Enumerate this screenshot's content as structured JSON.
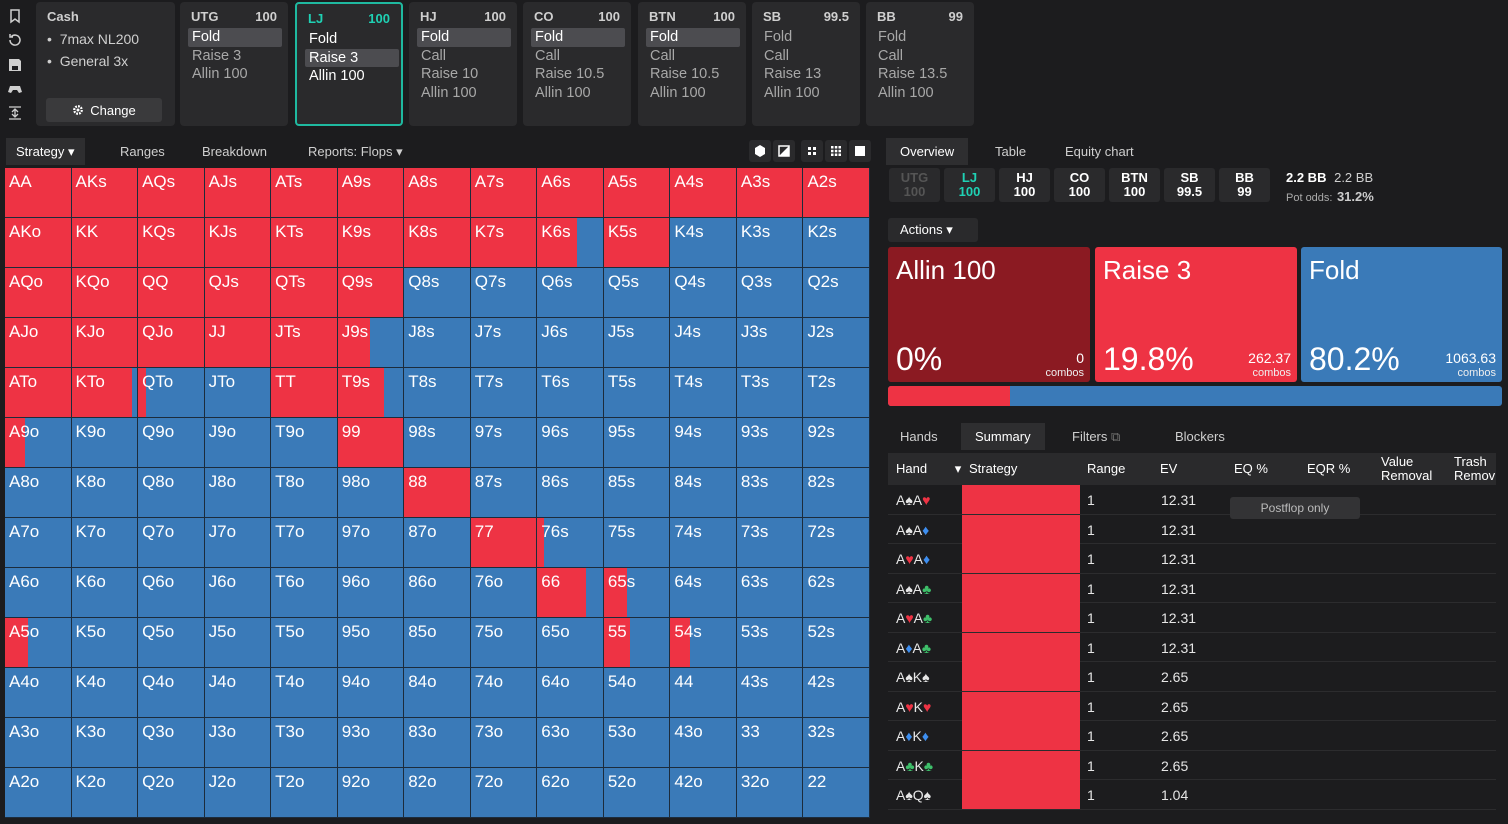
{
  "rail_icons": [
    "bookmark-icon",
    "history-icon",
    "save-icon",
    "gamepad-icon",
    "text-height-icon"
  ],
  "game": {
    "title": "Cash",
    "items": [
      "7max NL200",
      "General 3x"
    ],
    "change_label": "Change"
  },
  "positions": [
    {
      "name": "UTG",
      "stack": "100",
      "options": [
        "Fold",
        "Raise 3",
        "Allin 100"
      ],
      "selected": 0
    },
    {
      "name": "LJ",
      "stack": "100",
      "options": [
        "Fold",
        "Raise 3",
        "Allin 100"
      ],
      "selected": 1,
      "active": true
    },
    {
      "name": "HJ",
      "stack": "100",
      "options": [
        "Fold",
        "Call",
        "Raise 10",
        "Allin 100"
      ],
      "selected": 0
    },
    {
      "name": "CO",
      "stack": "100",
      "options": [
        "Fold",
        "Call",
        "Raise 10.5",
        "Allin 100"
      ],
      "selected": 0
    },
    {
      "name": "BTN",
      "stack": "100",
      "options": [
        "Fold",
        "Call",
        "Raise 10.5",
        "Allin 100"
      ],
      "selected": 0
    },
    {
      "name": "SB",
      "stack": "99.5",
      "options": [
        "Fold",
        "Call",
        "Raise 13",
        "Allin 100"
      ],
      "selected": -1
    },
    {
      "name": "BB",
      "stack": "99",
      "options": [
        "Fold",
        "Call",
        "Raise 13.5",
        "Allin 100"
      ],
      "selected": -1
    }
  ],
  "left_tabs": {
    "strategy": "Strategy",
    "ranges": "Ranges",
    "breakdown": "Breakdown",
    "reports": "Reports: Flops"
  },
  "colors": {
    "raise": "#ee3344",
    "fold": "#3a7ab8",
    "allin": "#8b1a22",
    "accent": "#1fd1b4"
  },
  "grid": {
    "ranks": [
      "A",
      "K",
      "Q",
      "J",
      "T",
      "9",
      "8",
      "7",
      "6",
      "5",
      "4",
      "3",
      "2"
    ],
    "labels": [
      [
        "AA",
        "AKs",
        "AQs",
        "AJs",
        "ATs",
        "A9s",
        "A8s",
        "A7s",
        "A6s",
        "A5s",
        "A4s",
        "A3s",
        "A2s"
      ],
      [
        "AKo",
        "KK",
        "KQs",
        "KJs",
        "KTs",
        "K9s",
        "K8s",
        "K7s",
        "K6s",
        "K5s",
        "K4s",
        "K3s",
        "K2s"
      ],
      [
        "AQo",
        "KQo",
        "QQ",
        "QJs",
        "QTs",
        "Q9s",
        "Q8s",
        "Q7s",
        "Q6s",
        "Q5s",
        "Q4s",
        "Q3s",
        "Q2s"
      ],
      [
        "AJo",
        "KJo",
        "QJo",
        "JJ",
        "JTs",
        "J9s",
        "J8s",
        "J7s",
        "J6s",
        "J5s",
        "J4s",
        "J3s",
        "J2s"
      ],
      [
        "ATo",
        "KTo",
        "QTo",
        "JTo",
        "TT",
        "T9s",
        "T8s",
        "T7s",
        "T6s",
        "T5s",
        "T4s",
        "T3s",
        "T2s"
      ],
      [
        "A9o",
        "K9o",
        "Q9o",
        "J9o",
        "T9o",
        "99",
        "98s",
        "97s",
        "96s",
        "95s",
        "94s",
        "93s",
        "92s"
      ],
      [
        "A8o",
        "K8o",
        "Q8o",
        "J8o",
        "T8o",
        "98o",
        "88",
        "87s",
        "86s",
        "85s",
        "84s",
        "83s",
        "82s"
      ],
      [
        "A7o",
        "K7o",
        "Q7o",
        "J7o",
        "T7o",
        "97o",
        "87o",
        "77",
        "76s",
        "75s",
        "74s",
        "73s",
        "72s"
      ],
      [
        "A6o",
        "K6o",
        "Q6o",
        "J6o",
        "T6o",
        "96o",
        "86o",
        "76o",
        "66",
        "65s",
        "64s",
        "63s",
        "62s"
      ],
      [
        "A5o",
        "K5o",
        "Q5o",
        "J5o",
        "T5o",
        "95o",
        "85o",
        "75o",
        "65o",
        "55",
        "54s",
        "53s",
        "52s"
      ],
      [
        "A4o",
        "K4o",
        "Q4o",
        "J4o",
        "T4o",
        "94o",
        "84o",
        "74o",
        "64o",
        "54o",
        "44",
        "43s",
        "42s"
      ],
      [
        "A3o",
        "K3o",
        "Q3o",
        "J3o",
        "T3o",
        "93o",
        "83o",
        "73o",
        "63o",
        "53o",
        "43o",
        "33",
        "32s"
      ],
      [
        "A2o",
        "K2o",
        "Q2o",
        "J2o",
        "T2o",
        "92o",
        "82o",
        "72o",
        "62o",
        "52o",
        "42o",
        "32o",
        "22"
      ]
    ],
    "raise_freq": [
      [
        1,
        1,
        1,
        1,
        1,
        1,
        1,
        1,
        1,
        1,
        1,
        1,
        1
      ],
      [
        1,
        1,
        1,
        1,
        1,
        1,
        1,
        1,
        0.6,
        1,
        0,
        0,
        0
      ],
      [
        1,
        1,
        1,
        1,
        1,
        1,
        0,
        0,
        0,
        0,
        0,
        0,
        0
      ],
      [
        1,
        1,
        1,
        1,
        1,
        0.5,
        0,
        0,
        0,
        0,
        0,
        0,
        0
      ],
      [
        1,
        0.92,
        0.12,
        0,
        1,
        0.7,
        0,
        0,
        0,
        0,
        0,
        0,
        0
      ],
      [
        0.3,
        0,
        0,
        0,
        0,
        1,
        0,
        0,
        0,
        0,
        0,
        0,
        0
      ],
      [
        0,
        0,
        0,
        0,
        0,
        0,
        1,
        0,
        0,
        0,
        0,
        0,
        0
      ],
      [
        0,
        0,
        0,
        0,
        0,
        0,
        0,
        1,
        0.1,
        0,
        0,
        0,
        0
      ],
      [
        0,
        0,
        0,
        0,
        0,
        0,
        0,
        0,
        0.75,
        0.35,
        0,
        0,
        0
      ],
      [
        0.35,
        0,
        0,
        0,
        0,
        0,
        0,
        0,
        0,
        0.4,
        0.3,
        0,
        0
      ],
      [
        0,
        0,
        0,
        0,
        0,
        0,
        0,
        0,
        0,
        0,
        0,
        0,
        0
      ],
      [
        0,
        0,
        0,
        0,
        0,
        0,
        0,
        0,
        0,
        0,
        0,
        0,
        0
      ],
      [
        0,
        0,
        0,
        0,
        0,
        0,
        0,
        0,
        0,
        0,
        0,
        0,
        0
      ]
    ]
  },
  "right_tabs": {
    "overview": "Overview",
    "table": "Table",
    "equity": "Equity chart"
  },
  "seats": [
    {
      "name": "UTG",
      "stack": "100",
      "state": "dim"
    },
    {
      "name": "LJ",
      "stack": "100",
      "state": "active"
    },
    {
      "name": "HJ",
      "stack": "100",
      "state": ""
    },
    {
      "name": "CO",
      "stack": "100",
      "state": ""
    },
    {
      "name": "BTN",
      "stack": "100",
      "state": ""
    },
    {
      "name": "SB",
      "stack": "99.5",
      "state": ""
    },
    {
      "name": "BB",
      "stack": "99",
      "state": ""
    }
  ],
  "pot": {
    "bb1": "2.2 BB",
    "bb2": "2.2 BB",
    "odds_label": "Pot odds:",
    "odds": "31.2%"
  },
  "actions_label": "Actions",
  "action_boxes": [
    {
      "name": "Allin 100",
      "pct": "0%",
      "combos": "0",
      "combos_label": "combos",
      "color": "#8b1a22"
    },
    {
      "name": "Raise 3",
      "pct": "19.8%",
      "combos": "262.37",
      "combos_label": "combos",
      "color": "#ee3344"
    },
    {
      "name": "Fold",
      "pct": "80.2%",
      "combos": "1063.63",
      "combos_label": "combos",
      "color": "#3a7ab8"
    }
  ],
  "freq_raise": 0.198,
  "sub_tabs": {
    "hands": "Hands",
    "summary": "Summary",
    "filters": "Filters",
    "blockers": "Blockers"
  },
  "table_headers": {
    "hand": "Hand",
    "strategy": "Strategy",
    "range": "Range",
    "ev": "EV",
    "eq": "EQ %",
    "eqr": "EQR %",
    "value1": "Value",
    "value2": "Removal",
    "trash1": "Trash",
    "trash2": "Remov"
  },
  "postflop_label": "Postflop only",
  "rows": [
    {
      "c1": "A",
      "s1": "♠",
      "k1": "s",
      "c2": "A",
      "s2": "♥",
      "k2": "h",
      "range": "1",
      "ev": "12.31"
    },
    {
      "c1": "A",
      "s1": "♠",
      "k1": "s",
      "c2": "A",
      "s2": "♦",
      "k2": "d",
      "range": "1",
      "ev": "12.31"
    },
    {
      "c1": "A",
      "s1": "♥",
      "k1": "h",
      "c2": "A",
      "s2": "♦",
      "k2": "d",
      "range": "1",
      "ev": "12.31"
    },
    {
      "c1": "A",
      "s1": "♠",
      "k1": "s",
      "c2": "A",
      "s2": "♣",
      "k2": "c",
      "range": "1",
      "ev": "12.31"
    },
    {
      "c1": "A",
      "s1": "♥",
      "k1": "h",
      "c2": "A",
      "s2": "♣",
      "k2": "c",
      "range": "1",
      "ev": "12.31"
    },
    {
      "c1": "A",
      "s1": "♦",
      "k1": "d",
      "c2": "A",
      "s2": "♣",
      "k2": "c",
      "range": "1",
      "ev": "12.31"
    },
    {
      "c1": "A",
      "s1": "♠",
      "k1": "s",
      "c2": "K",
      "s2": "♠",
      "k2": "s",
      "range": "1",
      "ev": "2.65"
    },
    {
      "c1": "A",
      "s1": "♥",
      "k1": "h",
      "c2": "K",
      "s2": "♥",
      "k2": "h",
      "range": "1",
      "ev": "2.65"
    },
    {
      "c1": "A",
      "s1": "♦",
      "k1": "d",
      "c2": "K",
      "s2": "♦",
      "k2": "d",
      "range": "1",
      "ev": "2.65"
    },
    {
      "c1": "A",
      "s1": "♣",
      "k1": "c",
      "c2": "K",
      "s2": "♣",
      "k2": "c",
      "range": "1",
      "ev": "2.65"
    },
    {
      "c1": "A",
      "s1": "♠",
      "k1": "s",
      "c2": "Q",
      "s2": "♠",
      "k2": "s",
      "range": "1",
      "ev": "1.04"
    }
  ]
}
